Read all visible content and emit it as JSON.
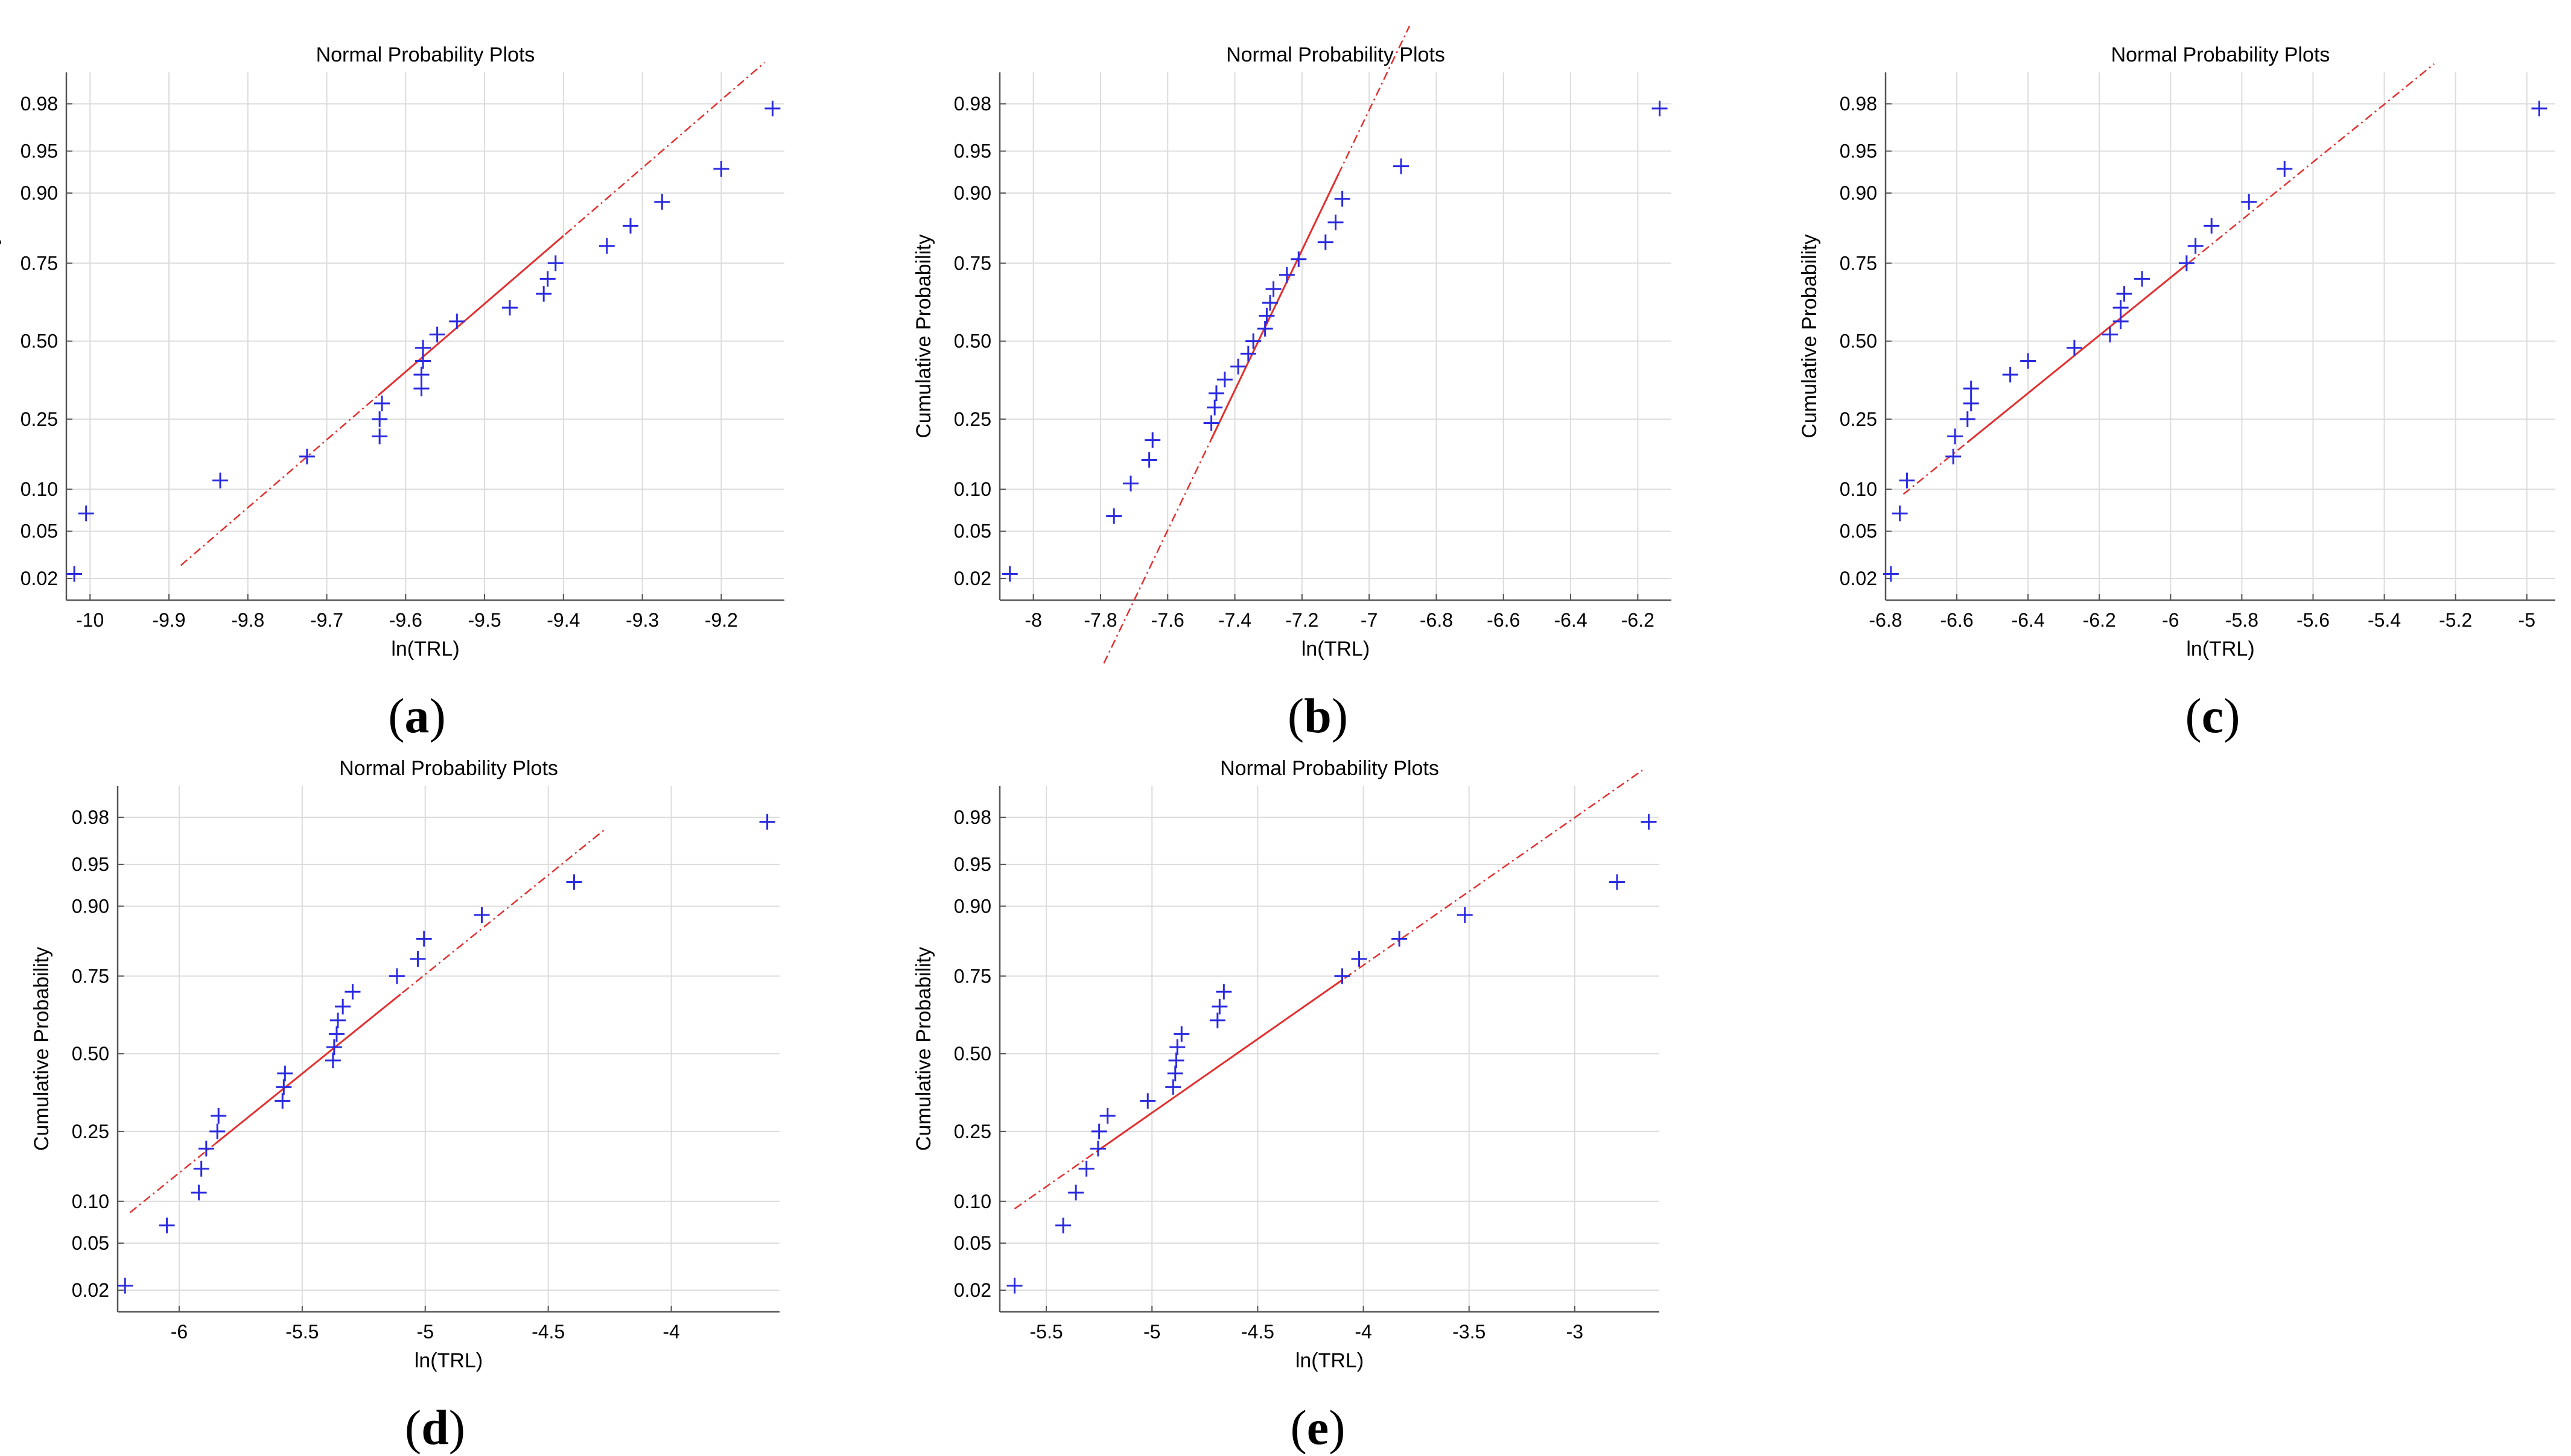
{
  "figure": {
    "panel_labels": [
      "(a)",
      "(b)",
      "(c)",
      "(d)",
      "(e)"
    ]
  },
  "style": {
    "marker_color": "#2a2ae0",
    "fit_line_color": "#e23030",
    "grid_color": "#dcdcdc",
    "axis_color": "#555555"
  },
  "chart_data": [
    {
      "id": "a",
      "type": "scatter",
      "title": "Normal Probability Plots",
      "xlabel": "ln(TRL)",
      "ylabel": "Cumulative Probability",
      "xlim": [
        -10.03,
        -9.12
      ],
      "xticks": [
        -10,
        -9.9,
        -9.8,
        -9.7,
        -9.6,
        -9.5,
        -9.4,
        -9.3,
        -9.2
      ],
      "xtick_labels": [
        "-10",
        "-9.9",
        "-9.8",
        "-9.7",
        "-9.6",
        "-9.5",
        "-9.4",
        "-9.3",
        "-9.2"
      ],
      "ylim_probability": [
        0.0125,
        0.99
      ],
      "yticks": [
        0.02,
        0.05,
        0.1,
        0.25,
        0.5,
        0.75,
        0.9,
        0.95,
        0.98
      ],
      "ytick_labels": [
        "0.02",
        "0.05",
        "0.10",
        "0.25",
        "0.50",
        "0.75",
        "0.90",
        "0.95",
        "0.98"
      ],
      "points": {
        "x": [
          -10.02,
          -10.005,
          -9.835,
          -9.725,
          -9.633,
          -9.633,
          -9.63,
          -9.58,
          -9.58,
          -9.578,
          -9.578,
          -9.56,
          -9.535,
          -9.468,
          -9.425,
          -9.42,
          -9.41,
          -9.345,
          -9.315,
          -9.275,
          -9.2,
          -9.135
        ],
        "p": [
          0.022,
          0.068,
          0.114,
          0.159,
          0.205,
          0.25,
          0.295,
          0.341,
          0.386,
          0.432,
          0.477,
          0.523,
          0.568,
          0.614,
          0.659,
          0.705,
          0.75,
          0.795,
          0.841,
          0.886,
          0.932,
          0.978
        ]
      },
      "fit_line": {
        "mu": -9.555,
        "sigma": 0.17,
        "solid_x": [
          -9.635,
          -9.4
        ],
        "dashed_x": [
          -9.885,
          -9.145
        ]
      }
    },
    {
      "id": "b",
      "type": "scatter",
      "title": "Normal Probability Plots",
      "xlabel": "ln(TRL)",
      "ylabel": "Cumulative Probability",
      "xlim": [
        -8.1,
        -6.1
      ],
      "xticks": [
        -8,
        -7.8,
        -7.6,
        -7.4,
        -7.2,
        -7,
        -6.8,
        -6.6,
        -6.4,
        -6.2
      ],
      "xtick_labels": [
        "-8",
        "-7.8",
        "-7.6",
        "-7.4",
        "-7.2",
        "-7",
        "-6.8",
        "-6.6",
        "-6.4",
        "-6.2"
      ],
      "ylim_probability": [
        0.0125,
        0.99
      ],
      "yticks": [
        0.02,
        0.05,
        0.1,
        0.25,
        0.5,
        0.75,
        0.9,
        0.95,
        0.98
      ],
      "ytick_labels": [
        "0.02",
        "0.05",
        "0.10",
        "0.25",
        "0.50",
        "0.75",
        "0.90",
        "0.95",
        "0.98"
      ],
      "points": {
        "x": [
          -8.07,
          -7.76,
          -7.71,
          -7.655,
          -7.645,
          -7.47,
          -7.46,
          -7.455,
          -7.43,
          -7.39,
          -7.36,
          -7.345,
          -7.31,
          -7.305,
          -7.295,
          -7.285,
          -7.245,
          -7.21,
          -7.13,
          -7.1,
          -7.08,
          -6.905,
          -6.135
        ],
        "p": [
          0.022,
          0.065,
          0.109,
          0.152,
          0.196,
          0.239,
          0.283,
          0.326,
          0.37,
          0.413,
          0.457,
          0.5,
          0.543,
          0.587,
          0.63,
          0.674,
          0.717,
          0.761,
          0.804,
          0.848,
          0.891,
          0.935,
          0.978
        ]
      },
      "fit_line": {
        "mu": -7.33,
        "sigma": 0.165,
        "solid_x": [
          -7.47,
          -7.09
        ],
        "dashed_x": [
          -7.79,
          -6.88
        ]
      }
    },
    {
      "id": "c",
      "type": "scatter",
      "title": "Normal Probability Plots",
      "xlabel": "ln(TRL)",
      "ylabel": "Cumulative Probability",
      "xlim": [
        -6.8,
        -4.92
      ],
      "xticks": [
        -6.8,
        -6.6,
        -6.4,
        -6.2,
        -6,
        -5.8,
        -5.6,
        -5.4,
        -5.2,
        -5
      ],
      "xtick_labels": [
        "-6.8",
        "-6.6",
        "-6.4",
        "-6.2",
        "-6",
        "-5.8",
        "-5.6",
        "-5.4",
        "-5.2",
        "-5"
      ],
      "ylim_probability": [
        0.0125,
        0.99
      ],
      "yticks": [
        0.02,
        0.05,
        0.1,
        0.25,
        0.5,
        0.75,
        0.9,
        0.95,
        0.98
      ],
      "ytick_labels": [
        "0.02",
        "0.05",
        "0.10",
        "0.25",
        "0.50",
        "0.75",
        "0.90",
        "0.95",
        "0.98"
      ],
      "points": {
        "x": [
          -6.785,
          -6.76,
          -6.74,
          -6.61,
          -6.605,
          -6.57,
          -6.56,
          -6.56,
          -6.45,
          -6.4,
          -6.27,
          -6.17,
          -6.14,
          -6.14,
          -6.13,
          -6.08,
          -5.955,
          -5.93,
          -5.885,
          -5.78,
          -5.68,
          -4.965
        ],
        "p": [
          0.022,
          0.068,
          0.114,
          0.159,
          0.205,
          0.25,
          0.295,
          0.341,
          0.386,
          0.432,
          0.477,
          0.523,
          0.568,
          0.614,
          0.659,
          0.705,
          0.75,
          0.795,
          0.841,
          0.886,
          0.932,
          0.978
        ]
      },
      "fit_line": {
        "mu": -6.22,
        "sigma": 0.4,
        "solid_x": [
          -6.57,
          -5.95
        ],
        "dashed_x": [
          -6.75,
          -5.26
        ]
      }
    },
    {
      "id": "d",
      "type": "scatter",
      "title": "Normal Probability Plots",
      "xlabel": "ln(TRL)",
      "ylabel": "Cumulative Probability",
      "xlim": [
        -6.25,
        -3.56
      ],
      "xticks": [
        -6,
        -5.5,
        -5,
        -4.5,
        -4
      ],
      "xtick_labels": [
        "-6",
        "-5.5",
        "-5",
        "-4.5",
        "-4"
      ],
      "ylim_probability": [
        0.0125,
        0.99
      ],
      "yticks": [
        0.02,
        0.05,
        0.1,
        0.25,
        0.5,
        0.75,
        0.9,
        0.95,
        0.98
      ],
      "ytick_labels": [
        "0.02",
        "0.05",
        "0.10",
        "0.25",
        "0.50",
        "0.75",
        "0.90",
        "0.95",
        "0.98"
      ],
      "points": {
        "x": [
          -6.22,
          -6.05,
          -5.92,
          -5.91,
          -5.89,
          -5.845,
          -5.84,
          -5.58,
          -5.575,
          -5.57,
          -5.375,
          -5.37,
          -5.36,
          -5.355,
          -5.335,
          -5.295,
          -5.115,
          -5.03,
          -5.005,
          -4.77,
          -4.395,
          -3.61
        ],
        "p": [
          0.022,
          0.068,
          0.114,
          0.159,
          0.205,
          0.25,
          0.295,
          0.341,
          0.386,
          0.432,
          0.477,
          0.523,
          0.568,
          0.614,
          0.659,
          0.705,
          0.75,
          0.795,
          0.841,
          0.886,
          0.932,
          0.978
        ]
      },
      "fit_line": {
        "mu": -5.4,
        "sigma": 0.58,
        "solid_x": [
          -5.85,
          -5.1
        ],
        "dashed_x": [
          -6.2,
          -4.27
        ]
      }
    },
    {
      "id": "e",
      "type": "scatter",
      "title": "Normal Probability Plots",
      "xlabel": "ln(TRL)",
      "ylabel": "Cumulative Probability",
      "xlim": [
        -5.72,
        -2.6
      ],
      "xticks": [
        -5.5,
        -5,
        -4.5,
        -4,
        -3.5,
        -3
      ],
      "xtick_labels": [
        "-5.5",
        "-5",
        "-4.5",
        "-4",
        "-3.5",
        "-3"
      ],
      "ylim_probability": [
        0.0125,
        0.99
      ],
      "yticks": [
        0.02,
        0.05,
        0.1,
        0.25,
        0.5,
        0.75,
        0.9,
        0.95,
        0.98
      ],
      "ytick_labels": [
        "0.02",
        "0.05",
        "0.10",
        "0.25",
        "0.50",
        "0.75",
        "0.90",
        "0.95",
        "0.98"
      ],
      "points": {
        "x": [
          -5.65,
          -5.42,
          -5.36,
          -5.31,
          -5.255,
          -5.25,
          -5.21,
          -5.02,
          -4.9,
          -4.89,
          -4.885,
          -4.88,
          -4.86,
          -4.69,
          -4.68,
          -4.66,
          -4.1,
          -4.02,
          -3.83,
          -3.52,
          -2.8,
          -2.65
        ],
        "p": [
          0.022,
          0.068,
          0.114,
          0.159,
          0.205,
          0.25,
          0.295,
          0.341,
          0.386,
          0.432,
          0.477,
          0.523,
          0.568,
          0.614,
          0.659,
          0.705,
          0.75,
          0.795,
          0.841,
          0.886,
          0.932,
          0.978
        ]
      },
      "fit_line": {
        "mu": -4.6,
        "sigma": 0.78,
        "solid_x": [
          -5.25,
          -4.1
        ],
        "dashed_x": [
          -5.65,
          -2.68
        ]
      }
    }
  ]
}
